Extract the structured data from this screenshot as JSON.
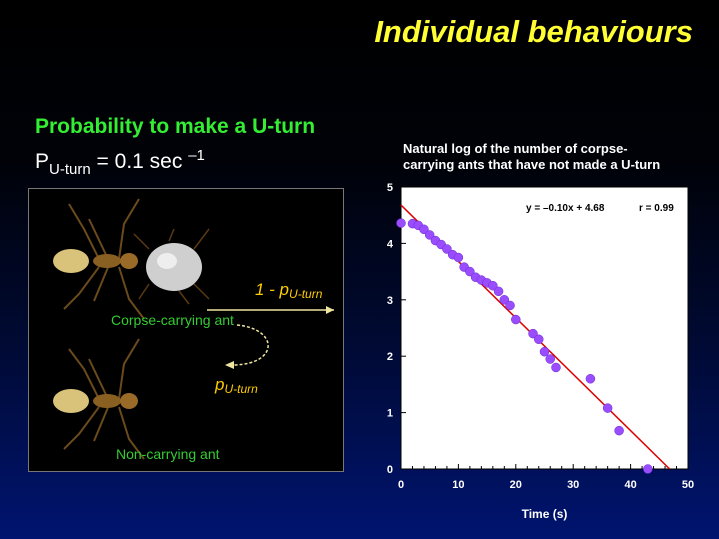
{
  "slide": {
    "title": "Individual behaviours",
    "subtitle": "Probability to make a U-turn",
    "formula": {
      "p": "P",
      "sub": "U-turn",
      "rest": " = 0.1 sec ",
      "sup": "–1"
    }
  },
  "illustration": {
    "label_top": "1 - p",
    "label_top_sub": "U-turn",
    "label_corpse": "Corpse-carrying ant",
    "label_bottom": "p",
    "label_bottom_sub": "U-turn",
    "label_noncarry": "Non-carrying ant"
  },
  "chart_title_line1": "Natural log of the number of corpse-",
  "chart_title_line2": "carrying ants that have not made a U-turn",
  "chart_data": {
    "type": "scatter",
    "title": "Natural log of the number of corpse-carrying ants that have not made a U-turn",
    "xlabel": "Time (s)",
    "ylabel": "",
    "xlim": [
      0,
      50
    ],
    "ylim": [
      0,
      5
    ],
    "xticks": [
      0,
      10,
      20,
      30,
      40,
      50
    ],
    "yticks": [
      0,
      1,
      2,
      3,
      4,
      5
    ],
    "points": [
      [
        0,
        4.36
      ],
      [
        2,
        4.35
      ],
      [
        3,
        4.32
      ],
      [
        4,
        4.25
      ],
      [
        5,
        4.15
      ],
      [
        6,
        4.05
      ],
      [
        7,
        3.98
      ],
      [
        8,
        3.9
      ],
      [
        9,
        3.8
      ],
      [
        10,
        3.75
      ],
      [
        11,
        3.58
      ],
      [
        12,
        3.5
      ],
      [
        13,
        3.4
      ],
      [
        14,
        3.35
      ],
      [
        15,
        3.3
      ],
      [
        16,
        3.25
      ],
      [
        17,
        3.15
      ],
      [
        18,
        3.0
      ],
      [
        19,
        2.9
      ],
      [
        20,
        2.65
      ],
      [
        23,
        2.4
      ],
      [
        24,
        2.3
      ],
      [
        25,
        2.08
      ],
      [
        26,
        1.95
      ],
      [
        27,
        1.8
      ],
      [
        33,
        1.6
      ],
      [
        36,
        1.08
      ],
      [
        38,
        0.68
      ],
      [
        43,
        0.0
      ]
    ],
    "fit": {
      "slope": -0.1,
      "intercept": 4.68,
      "label": "y = –0.10x  +  4.68",
      "r_label": "r = 0.99"
    },
    "point_color": "#9a4dff",
    "line_color": "#dd0000",
    "background": "#ffffff"
  }
}
